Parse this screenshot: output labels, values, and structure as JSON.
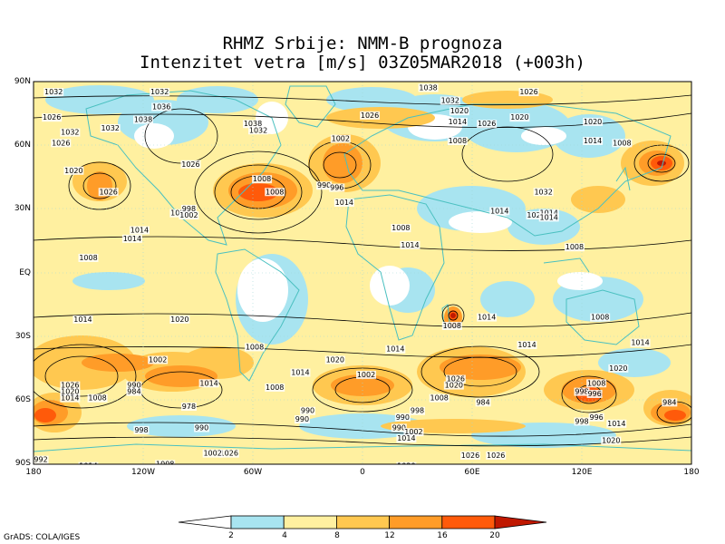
{
  "title_line1": "RHMZ Srbije: NMM-B prognoza",
  "title_line2": "Intenzitet vetra [m/s] 03Z05MAR2018 (+003h)",
  "lat_labels": [
    "90N",
    "60N",
    "30N",
    "EQ",
    "30S",
    "60S",
    "90S"
  ],
  "lon_labels": [
    "180",
    "120W",
    "60W",
    "0",
    "60E",
    "120E",
    "180"
  ],
  "colorbar": {
    "labels": [
      "2",
      "4",
      "8",
      "12",
      "16",
      "20"
    ],
    "colors": [
      "#ffffff",
      "#a8e4f0",
      "#fff0a0",
      "#ffc850",
      "#ff9c28",
      "#ff5a0a",
      "#c01800"
    ]
  },
  "credit": "GrADS: COLA/IGES",
  "isobar_labels": [
    {
      "text": "1032",
      "lon": -169,
      "lat": 84
    },
    {
      "text": "1032",
      "lon": -111,
      "lat": 84
    },
    {
      "text": "1036",
      "lon": -110,
      "lat": 77
    },
    {
      "text": "1026",
      "lon": -170,
      "lat": 72
    },
    {
      "text": "1032",
      "lon": -160,
      "lat": 65
    },
    {
      "text": "1032",
      "lon": -138,
      "lat": 67
    },
    {
      "text": "1038",
      "lon": -120,
      "lat": 71
    },
    {
      "text": "1038",
      "lon": -60,
      "lat": 69
    },
    {
      "text": "1032",
      "lon": -57,
      "lat": 66
    },
    {
      "text": "1026",
      "lon": -165,
      "lat": 60
    },
    {
      "text": "1020",
      "lon": -158,
      "lat": 47
    },
    {
      "text": "1026",
      "lon": -139,
      "lat": 37
    },
    {
      "text": "1026",
      "lon": -94,
      "lat": 50
    },
    {
      "text": "1008",
      "lon": -55,
      "lat": 43
    },
    {
      "text": "1008",
      "lon": -48,
      "lat": 37
    },
    {
      "text": "990",
      "lon": -21,
      "lat": 40
    },
    {
      "text": "996",
      "lon": -14,
      "lat": 39
    },
    {
      "text": "1014",
      "lon": -10,
      "lat": 32
    },
    {
      "text": "1002",
      "lon": -12,
      "lat": 62
    },
    {
      "text": "1026",
      "lon": 4,
      "lat": 73
    },
    {
      "text": "1020",
      "lon": -100,
      "lat": 27
    },
    {
      "text": "998",
      "lon": -95,
      "lat": 29
    },
    {
      "text": "1002",
      "lon": -95,
      "lat": 26
    },
    {
      "text": "1014",
      "lon": -122,
      "lat": 19
    },
    {
      "text": "1014",
      "lon": -126,
      "lat": 15
    },
    {
      "text": "1008",
      "lon": -150,
      "lat": 6
    },
    {
      "text": "1008",
      "lon": 21,
      "lat": 20
    },
    {
      "text": "1014",
      "lon": 26,
      "lat": 12
    },
    {
      "text": "1038",
      "lon": 36,
      "lat": 86
    },
    {
      "text": "1032",
      "lon": 48,
      "lat": 80
    },
    {
      "text": "1020",
      "lon": 53,
      "lat": 75
    },
    {
      "text": "1014",
      "lon": 52,
      "lat": 70
    },
    {
      "text": "1008",
      "lon": 52,
      "lat": 61
    },
    {
      "text": "1026",
      "lon": 68,
      "lat": 69
    },
    {
      "text": "1020",
      "lon": 86,
      "lat": 72
    },
    {
      "text": "1026",
      "lon": 91,
      "lat": 84
    },
    {
      "text": "1020",
      "lon": 126,
      "lat": 70
    },
    {
      "text": "1014",
      "lon": 126,
      "lat": 61
    },
    {
      "text": "1008",
      "lon": 142,
      "lat": 60
    },
    {
      "text": "1032",
      "lon": 99,
      "lat": 37
    },
    {
      "text": "1014",
      "lon": 75,
      "lat": 28
    },
    {
      "text": "1020",
      "lon": 95,
      "lat": 26
    },
    {
      "text": "1014",
      "lon": 102,
      "lat": 27
    },
    {
      "text": "1014",
      "lon": 102,
      "lat": 25
    },
    {
      "text": "1008",
      "lon": 116,
      "lat": 11
    },
    {
      "text": "1014",
      "lon": -153,
      "lat": -23
    },
    {
      "text": "1020",
      "lon": -100,
      "lat": -23
    },
    {
      "text": "1008",
      "lon": -59,
      "lat": -36
    },
    {
      "text": "1002",
      "lon": -112,
      "lat": -42
    },
    {
      "text": "1014",
      "lon": -84,
      "lat": -53
    },
    {
      "text": "1008",
      "lon": -48,
      "lat": -55
    },
    {
      "text": "1020",
      "lon": -15,
      "lat": -42
    },
    {
      "text": "1014",
      "lon": -34,
      "lat": -48
    },
    {
      "text": "1014",
      "lon": 18,
      "lat": -37
    },
    {
      "text": "1002",
      "lon": 2,
      "lat": -49
    },
    {
      "text": "1008",
      "lon": 49,
      "lat": -26
    },
    {
      "text": "1014",
      "lon": 68,
      "lat": -22
    },
    {
      "text": "1014",
      "lon": 90,
      "lat": -35
    },
    {
      "text": "1008",
      "lon": 130,
      "lat": -22
    },
    {
      "text": "1014",
      "lon": 152,
      "lat": -34
    },
    {
      "text": "1020",
      "lon": 140,
      "lat": -46
    },
    {
      "text": "1026",
      "lon": -160,
      "lat": -54
    },
    {
      "text": "1020",
      "lon": -160,
      "lat": -57
    },
    {
      "text": "1014",
      "lon": -160,
      "lat": -60
    },
    {
      "text": "1008",
      "lon": -145,
      "lat": -60
    },
    {
      "text": "990",
      "lon": -125,
      "lat": -54
    },
    {
      "text": "984",
      "lon": -125,
      "lat": -57
    },
    {
      "text": "978",
      "lon": -95,
      "lat": -64
    },
    {
      "text": "998",
      "lon": -121,
      "lat": -75
    },
    {
      "text": "990",
      "lon": -88,
      "lat": -74
    },
    {
      "text": "990",
      "lon": -30,
      "lat": -66
    },
    {
      "text": "990",
      "lon": -33,
      "lat": -70
    },
    {
      "text": "998",
      "lon": 30,
      "lat": -66
    },
    {
      "text": "1026",
      "lon": 51,
      "lat": -51
    },
    {
      "text": "1020",
      "lon": 50,
      "lat": -54
    },
    {
      "text": "1008",
      "lon": 42,
      "lat": -60
    },
    {
      "text": "984",
      "lon": 66,
      "lat": -62
    },
    {
      "text": "990",
      "lon": 22,
      "lat": -69
    },
    {
      "text": "990",
      "lon": 20,
      "lat": -74
    },
    {
      "text": "1002",
      "lon": 28,
      "lat": -76
    },
    {
      "text": "1014",
      "lon": 24,
      "lat": -79
    },
    {
      "text": "998",
      "lon": 120,
      "lat": -57
    },
    {
      "text": "996",
      "lon": 127,
      "lat": -58
    },
    {
      "text": "1008",
      "lon": 128,
      "lat": -53
    },
    {
      "text": "998",
      "lon": 120,
      "lat": -71
    },
    {
      "text": "996",
      "lon": 128,
      "lat": -69
    },
    {
      "text": "1014",
      "lon": 139,
      "lat": -72
    },
    {
      "text": "984",
      "lon": 168,
      "lat": -62
    },
    {
      "text": "1020",
      "lon": 136,
      "lat": -80
    },
    {
      "text": "1026",
      "lon": 73,
      "lat": -87
    },
    {
      "text": "1026",
      "lon": -73,
      "lat": -86
    },
    {
      "text": "1002",
      "lon": -82,
      "lat": -86
    },
    {
      "text": "1008",
      "lon": -108,
      "lat": -91
    },
    {
      "text": "1014",
      "lon": -150,
      "lat": -92
    },
    {
      "text": "1020",
      "lon": 24,
      "lat": -92
    },
    {
      "text": "1026",
      "lon": 59,
      "lat": -87
    },
    {
      "text": "992",
      "lon": -176,
      "lat": -89
    }
  ]
}
